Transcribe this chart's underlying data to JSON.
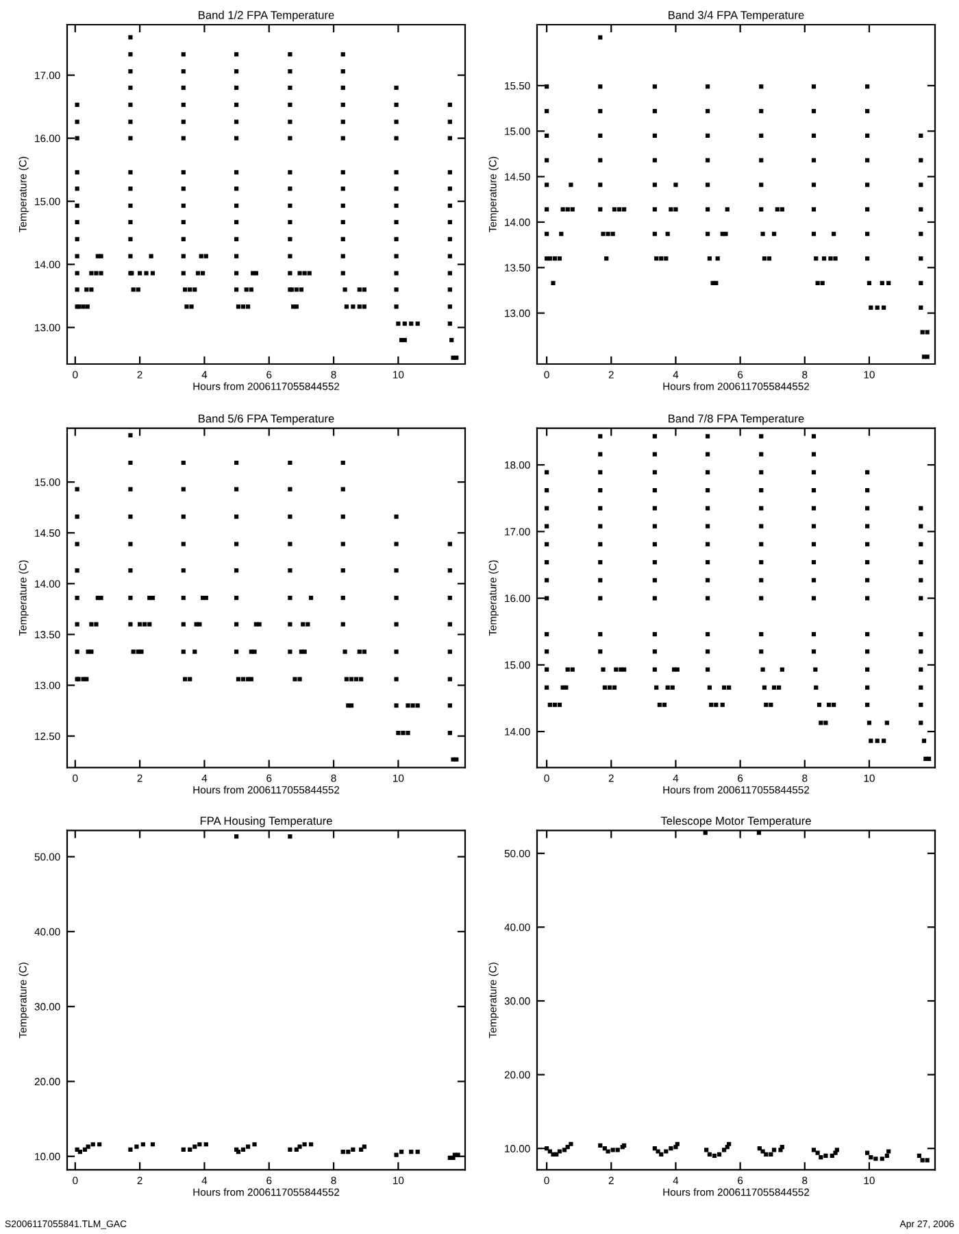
{
  "chart_data": [
    {
      "type": "scatter",
      "title": "Band 1/2 FPA Temperature",
      "xlabel": "Hours from 2006117055844552",
      "ylabel": "Temperature (C)",
      "color": "#000000",
      "marker": "square",
      "xlim": [
        -0.25,
        12.07
      ],
      "xticks": [
        0,
        2,
        4,
        6,
        8,
        10
      ],
      "ylim": [
        12.42,
        17.8
      ],
      "yticks": [
        {
          "value": 13,
          "label": "13.00"
        },
        {
          "value": 14,
          "label": "14.00"
        },
        {
          "value": 15,
          "label": "15.00"
        },
        {
          "value": 16,
          "label": "16.00"
        },
        {
          "value": 17,
          "label": "17.00"
        }
      ],
      "x": [
        0.06,
        0.06,
        0.06,
        0.06,
        0.06,
        0.06,
        0.06,
        0.06,
        0.06,
        0.06,
        0.06,
        0.06,
        0.12,
        0.25,
        0.38,
        0.35,
        0.5,
        0.5,
        0.65,
        0.8,
        0.7,
        0.8,
        1.71,
        1.71,
        1.71,
        1.71,
        1.71,
        1.71,
        1.71,
        1.71,
        1.71,
        1.71,
        1.71,
        1.71,
        1.71,
        1.71,
        1.8,
        1.95,
        1.75,
        2.0,
        2.2,
        2.4,
        2.35,
        3.35,
        3.35,
        3.35,
        3.35,
        3.35,
        3.35,
        3.35,
        3.35,
        3.35,
        3.35,
        3.35,
        3.35,
        3.35,
        3.45,
        3.6,
        3.4,
        3.55,
        3.7,
        3.8,
        3.95,
        3.9,
        4.05,
        4.99,
        4.99,
        4.99,
        4.99,
        4.99,
        4.99,
        4.99,
        4.99,
        4.99,
        4.99,
        4.99,
        4.99,
        4.99,
        4.99,
        5.05,
        5.2,
        5.35,
        5.3,
        5.45,
        5.5,
        5.6,
        6.65,
        6.65,
        6.65,
        6.65,
        6.65,
        6.65,
        6.65,
        6.65,
        6.65,
        6.65,
        6.65,
        6.65,
        6.65,
        6.65,
        6.75,
        6.85,
        6.7,
        6.85,
        7.0,
        6.95,
        7.1,
        7.25,
        8.29,
        8.29,
        8.29,
        8.29,
        8.29,
        8.29,
        8.29,
        8.29,
        8.29,
        8.29,
        8.29,
        8.29,
        8.29,
        8.35,
        8.4,
        8.6,
        8.8,
        8.95,
        8.8,
        8.95,
        9.94,
        9.94,
        9.94,
        9.94,
        9.94,
        9.94,
        9.94,
        9.94,
        9.94,
        9.94,
        9.94,
        9.94,
        9.94,
        10.0,
        10.2,
        10.4,
        10.6,
        10.1,
        10.2,
        11.6,
        11.6,
        11.6,
        11.6,
        11.6,
        11.6,
        11.6,
        11.6,
        11.6,
        11.6,
        11.6,
        11.6,
        11.6,
        11.65,
        11.7,
        11.8
      ],
      "values": [
        16.53,
        16.26,
        16.0,
        15.46,
        15.2,
        14.93,
        14.67,
        14.4,
        14.13,
        13.86,
        13.6,
        13.33,
        13.33,
        13.33,
        13.33,
        13.6,
        13.6,
        13.86,
        13.86,
        13.86,
        14.13,
        14.13,
        17.6,
        17.33,
        17.06,
        16.8,
        16.53,
        16.26,
        16.0,
        15.46,
        15.2,
        14.93,
        14.67,
        14.4,
        14.13,
        13.86,
        13.6,
        13.6,
        13.86,
        13.86,
        13.86,
        13.86,
        14.13,
        17.33,
        17.06,
        16.8,
        16.53,
        16.26,
        16.0,
        15.46,
        15.2,
        14.93,
        14.67,
        14.4,
        14.13,
        13.86,
        13.33,
        13.33,
        13.6,
        13.6,
        13.6,
        13.86,
        13.86,
        14.13,
        14.13,
        17.33,
        17.06,
        16.8,
        16.53,
        16.26,
        16.0,
        15.46,
        15.2,
        14.93,
        14.67,
        14.4,
        14.13,
        13.86,
        13.6,
        13.33,
        13.33,
        13.33,
        13.6,
        13.6,
        13.86,
        13.86,
        17.33,
        17.06,
        16.8,
        16.53,
        16.26,
        16.0,
        15.46,
        15.2,
        14.93,
        14.67,
        14.4,
        14.13,
        13.86,
        13.6,
        13.33,
        13.33,
        13.6,
        13.6,
        13.6,
        13.86,
        13.86,
        13.86,
        17.33,
        17.06,
        16.8,
        16.53,
        16.26,
        16.0,
        15.46,
        15.2,
        14.93,
        14.67,
        14.4,
        14.13,
        13.86,
        13.6,
        13.33,
        13.33,
        13.33,
        13.33,
        13.6,
        13.6,
        16.8,
        16.53,
        16.26,
        16.0,
        15.46,
        15.2,
        14.93,
        14.67,
        14.4,
        14.13,
        13.86,
        13.6,
        13.33,
        13.06,
        13.06,
        13.06,
        13.06,
        12.8,
        12.8,
        16.53,
        16.26,
        16.0,
        15.46,
        15.2,
        14.93,
        14.67,
        14.4,
        14.13,
        13.86,
        13.6,
        13.33,
        13.06,
        12.8,
        12.52,
        12.52
      ]
    },
    {
      "type": "scatter",
      "title": "Band 3/4 FPA Temperature",
      "xlabel": "Hours from 2006117055844552",
      "ylabel": "Temperature (C)",
      "color": "#000000",
      "marker": "square",
      "xlim": [
        -0.3,
        12.04
      ],
      "xticks": [
        0,
        2,
        4,
        6,
        8,
        10
      ],
      "ylim": [
        12.44,
        16.17
      ],
      "yticks": [
        {
          "value": 13,
          "label": "13.00"
        },
        {
          "value": 13.5,
          "label": "13.50"
        },
        {
          "value": 14,
          "label": "14.00"
        },
        {
          "value": 14.5,
          "label": "14.50"
        },
        {
          "value": 15,
          "label": "15.00"
        },
        {
          "value": 15.5,
          "label": "15.50"
        }
      ],
      "x": [
        0,
        0,
        0,
        0,
        0,
        0,
        0,
        0,
        0.1,
        0.25,
        0.4,
        0.2,
        0.45,
        0.5,
        0.65,
        0.8,
        0.75,
        1.66,
        1.66,
        1.66,
        1.66,
        1.66,
        1.66,
        1.66,
        1.75,
        1.9,
        2.05,
        1.85,
        2.1,
        2.25,
        2.4,
        3.35,
        3.35,
        3.35,
        3.35,
        3.35,
        3.35,
        3.35,
        3.4,
        3.55,
        3.7,
        3.75,
        3.85,
        4.0,
        4.0,
        4.99,
        4.99,
        4.99,
        4.99,
        4.99,
        4.99,
        4.99,
        5.05,
        5.15,
        5.25,
        5.3,
        5.45,
        5.55,
        5.6,
        6.65,
        6.65,
        6.65,
        6.65,
        6.65,
        6.65,
        6.7,
        6.75,
        6.9,
        7.05,
        7.15,
        7.3,
        8.28,
        8.28,
        8.28,
        8.28,
        8.28,
        8.28,
        8.28,
        8.35,
        8.6,
        8.8,
        8.95,
        8.4,
        8.55,
        8.9,
        9.94,
        9.94,
        9.94,
        9.94,
        9.94,
        9.94,
        9.94,
        9.94,
        10.0,
        10.4,
        10.6,
        10.05,
        10.25,
        10.45,
        11.6,
        11.6,
        11.6,
        11.6,
        11.6,
        11.6,
        11.6,
        11.6,
        11.65,
        11.8,
        11.7,
        11.8
      ],
      "values": [
        15.49,
        15.22,
        14.95,
        14.68,
        14.41,
        14.14,
        13.87,
        13.6,
        13.6,
        13.6,
        13.6,
        13.33,
        13.87,
        14.14,
        14.14,
        14.14,
        14.41,
        16.03,
        15.49,
        15.22,
        14.95,
        14.68,
        14.41,
        14.14,
        13.87,
        13.87,
        13.87,
        13.6,
        14.14,
        14.14,
        14.14,
        15.49,
        15.22,
        14.95,
        14.68,
        14.41,
        14.14,
        13.87,
        13.6,
        13.6,
        13.6,
        13.87,
        14.14,
        14.14,
        14.41,
        15.49,
        15.22,
        14.95,
        14.68,
        14.41,
        14.14,
        13.87,
        13.6,
        13.33,
        13.33,
        13.6,
        13.87,
        13.87,
        14.14,
        15.49,
        15.22,
        14.95,
        14.68,
        14.41,
        14.14,
        13.87,
        13.6,
        13.6,
        13.87,
        14.14,
        14.14,
        15.49,
        15.22,
        14.95,
        14.68,
        14.41,
        14.14,
        13.87,
        13.6,
        13.6,
        13.6,
        13.6,
        13.33,
        13.33,
        13.87,
        15.49,
        15.22,
        14.95,
        14.68,
        14.41,
        14.14,
        13.87,
        13.6,
        13.33,
        13.33,
        13.33,
        13.06,
        13.06,
        13.06,
        14.95,
        14.68,
        14.41,
        14.14,
        13.87,
        13.6,
        13.33,
        13.06,
        12.79,
        12.79,
        12.52,
        12.52
      ]
    },
    {
      "type": "scatter",
      "title": "Band 5/6 FPA Temperature",
      "xlabel": "Hours from 2006117055844552",
      "ylabel": "Temperature (C)",
      "color": "#000000",
      "marker": "square",
      "xlim": [
        -0.25,
        12.07
      ],
      "xticks": [
        0,
        2,
        4,
        6,
        8,
        10
      ],
      "ylim": [
        12.19,
        15.53
      ],
      "yticks": [
        {
          "value": 12.5,
          "label": "12.50"
        },
        {
          "value": 13,
          "label": "13.00"
        },
        {
          "value": 13.5,
          "label": "13.50"
        },
        {
          "value": 14,
          "label": "14.00"
        },
        {
          "value": 14.5,
          "label": "14.50"
        },
        {
          "value": 15,
          "label": "15.00"
        }
      ],
      "x": [
        0.06,
        0.06,
        0.06,
        0.06,
        0.06,
        0.06,
        0.06,
        0.06,
        0.1,
        0.25,
        0.35,
        0.4,
        0.5,
        0.5,
        0.65,
        0.7,
        0.8,
        1.71,
        1.71,
        1.71,
        1.71,
        1.71,
        1.71,
        1.71,
        1.71,
        1.8,
        1.95,
        2.05,
        2.0,
        2.15,
        2.3,
        2.3,
        2.4,
        3.35,
        3.35,
        3.35,
        3.35,
        3.35,
        3.35,
        3.35,
        3.35,
        3.4,
        3.55,
        3.7,
        3.75,
        3.85,
        3.95,
        4.05,
        4.99,
        4.99,
        4.99,
        4.99,
        4.99,
        4.99,
        4.99,
        4.99,
        5.05,
        5.2,
        5.35,
        5.45,
        5.45,
        5.55,
        5.6,
        5.7,
        6.65,
        6.65,
        6.65,
        6.65,
        6.65,
        6.65,
        6.65,
        6.65,
        6.8,
        6.95,
        7.0,
        7.1,
        7.05,
        7.2,
        7.3,
        8.29,
        8.29,
        8.29,
        8.29,
        8.29,
        8.29,
        8.29,
        8.35,
        8.4,
        8.55,
        8.7,
        8.85,
        8.45,
        8.55,
        8.8,
        8.95,
        9.94,
        9.94,
        9.94,
        9.94,
        9.94,
        9.94,
        9.94,
        9.94,
        10.0,
        10.15,
        10.3,
        10.3,
        10.45,
        10.6,
        11.6,
        11.6,
        11.6,
        11.6,
        11.6,
        11.6,
        11.6,
        11.6,
        11.7,
        11.8
      ],
      "values": [
        14.93,
        14.66,
        14.39,
        14.13,
        13.86,
        13.6,
        13.33,
        13.06,
        13.06,
        13.06,
        13.06,
        13.33,
        13.33,
        13.6,
        13.6,
        13.86,
        13.86,
        15.46,
        15.19,
        14.93,
        14.66,
        14.39,
        14.13,
        13.86,
        13.6,
        13.33,
        13.33,
        13.33,
        13.6,
        13.6,
        13.6,
        13.86,
        13.86,
        15.19,
        14.93,
        14.66,
        14.39,
        14.13,
        13.86,
        13.6,
        13.33,
        13.06,
        13.06,
        13.33,
        13.6,
        13.6,
        13.86,
        13.86,
        15.19,
        14.93,
        14.66,
        14.39,
        14.13,
        13.86,
        13.6,
        13.33,
        13.06,
        13.06,
        13.06,
        13.06,
        13.33,
        13.33,
        13.6,
        13.6,
        15.19,
        14.93,
        14.66,
        14.39,
        14.13,
        13.86,
        13.6,
        13.33,
        13.06,
        13.06,
        13.33,
        13.33,
        13.6,
        13.6,
        13.86,
        15.19,
        14.93,
        14.66,
        14.39,
        14.13,
        13.86,
        13.6,
        13.33,
        13.06,
        13.06,
        13.06,
        13.06,
        12.8,
        12.8,
        13.33,
        13.33,
        14.66,
        14.39,
        14.13,
        13.86,
        13.6,
        13.33,
        13.06,
        12.8,
        12.53,
        12.53,
        12.53,
        12.8,
        12.8,
        12.8,
        14.39,
        14.13,
        13.86,
        13.6,
        13.33,
        13.06,
        12.8,
        12.53,
        12.27,
        12.27
      ]
    },
    {
      "type": "scatter",
      "title": "Band 7/8 FPA Temperature",
      "xlabel": "Hours from 2006117055844552",
      "ylabel": "Temperature (C)",
      "color": "#000000",
      "marker": "square",
      "xlim": [
        -0.3,
        12.04
      ],
      "xticks": [
        0,
        2,
        4,
        6,
        8,
        10
      ],
      "ylim": [
        13.46,
        18.55
      ],
      "yticks": [
        {
          "value": 14,
          "label": "14.00"
        },
        {
          "value": 15,
          "label": "15.00"
        },
        {
          "value": 16,
          "label": "16.00"
        },
        {
          "value": 17,
          "label": "17.00"
        },
        {
          "value": 18,
          "label": "18.00"
        }
      ],
      "x": [
        0,
        0,
        0,
        0,
        0,
        0,
        0,
        0,
        0,
        0,
        0,
        0,
        0.1,
        0.25,
        0.4,
        0.5,
        0.6,
        0.65,
        0.8,
        1.66,
        1.66,
        1.66,
        1.66,
        1.66,
        1.66,
        1.66,
        1.66,
        1.66,
        1.66,
        1.66,
        1.66,
        1.75,
        1.8,
        1.95,
        2.1,
        2.15,
        2.3,
        2.4,
        3.35,
        3.35,
        3.35,
        3.35,
        3.35,
        3.35,
        3.35,
        3.35,
        3.35,
        3.35,
        3.35,
        3.35,
        3.35,
        3.4,
        3.5,
        3.65,
        3.75,
        3.9,
        3.95,
        4.05,
        4.99,
        4.99,
        4.99,
        4.99,
        4.99,
        4.99,
        4.99,
        4.99,
        4.99,
        4.99,
        4.99,
        4.99,
        4.99,
        5.05,
        5.1,
        5.25,
        5.45,
        5.5,
        5.65,
        6.65,
        6.65,
        6.65,
        6.65,
        6.65,
        6.65,
        6.65,
        6.65,
        6.65,
        6.65,
        6.65,
        6.65,
        6.7,
        6.75,
        6.8,
        6.95,
        7.05,
        7.2,
        7.3,
        8.28,
        8.28,
        8.28,
        8.28,
        8.28,
        8.28,
        8.28,
        8.28,
        8.28,
        8.28,
        8.28,
        8.28,
        8.33,
        8.35,
        8.45,
        8.75,
        8.9,
        8.5,
        8.65,
        9.94,
        9.94,
        9.94,
        9.94,
        9.94,
        9.94,
        9.94,
        9.94,
        9.94,
        9.94,
        9.94,
        9.94,
        9.94,
        10.0,
        10.55,
        10.05,
        10.25,
        10.45,
        11.6,
        11.6,
        11.6,
        11.6,
        11.6,
        11.6,
        11.6,
        11.6,
        11.6,
        11.6,
        11.6,
        11.6,
        11.7,
        11.75,
        11.85
      ],
      "values": [
        17.89,
        17.62,
        17.35,
        17.08,
        16.81,
        16.54,
        16.27,
        16.0,
        15.46,
        15.2,
        14.93,
        14.66,
        14.4,
        14.4,
        14.4,
        14.66,
        14.66,
        14.93,
        14.93,
        18.43,
        18.16,
        17.89,
        17.62,
        17.35,
        17.08,
        16.81,
        16.54,
        16.27,
        16.0,
        15.46,
        15.2,
        14.93,
        14.66,
        14.66,
        14.66,
        14.93,
        14.93,
        14.93,
        18.43,
        18.16,
        17.89,
        17.62,
        17.35,
        17.08,
        16.81,
        16.54,
        16.27,
        16.0,
        15.46,
        15.2,
        14.93,
        14.66,
        14.4,
        14.4,
        14.66,
        14.66,
        14.93,
        14.93,
        18.43,
        18.16,
        17.89,
        17.62,
        17.35,
        17.08,
        16.81,
        16.54,
        16.27,
        16.0,
        15.46,
        15.2,
        14.93,
        14.66,
        14.4,
        14.4,
        14.4,
        14.66,
        14.66,
        18.43,
        18.16,
        17.89,
        17.62,
        17.35,
        17.08,
        16.81,
        16.54,
        16.27,
        16.0,
        15.46,
        15.2,
        14.93,
        14.66,
        14.4,
        14.4,
        14.66,
        14.66,
        14.93,
        18.43,
        18.16,
        17.89,
        17.62,
        17.35,
        17.08,
        16.81,
        16.54,
        16.27,
        16.0,
        15.46,
        15.2,
        14.93,
        14.66,
        14.4,
        14.4,
        14.4,
        14.13,
        14.13,
        17.89,
        17.62,
        17.35,
        17.08,
        16.81,
        16.54,
        16.27,
        16.0,
        15.46,
        15.2,
        14.93,
        14.66,
        14.4,
        14.13,
        14.13,
        13.86,
        13.86,
        13.86,
        17.35,
        17.08,
        16.81,
        16.54,
        16.27,
        16.0,
        15.46,
        15.2,
        14.93,
        14.66,
        14.4,
        14.13,
        13.86,
        13.59,
        13.59
      ]
    },
    {
      "type": "scatter",
      "title": "FPA Housing Temperature",
      "xlabel": "Hours from 2006117055844552",
      "ylabel": "Temperature (C)",
      "color": "#000000",
      "marker": "square",
      "annotations": [
        "S2006117055841.TLM_GAC"
      ],
      "xlim": [
        -0.25,
        12.07
      ],
      "xticks": [
        0,
        2,
        4,
        6,
        8,
        10
      ],
      "ylim": [
        8.2,
        53.5
      ],
      "yticks": [
        {
          "value": 10,
          "label": "10.00"
        },
        {
          "value": 20,
          "label": "20.00"
        },
        {
          "value": 30,
          "label": "30.00"
        },
        {
          "value": 40,
          "label": "40.00"
        },
        {
          "value": 50,
          "label": "50.00"
        }
      ],
      "x": [
        0.06,
        0.15,
        0.3,
        0.4,
        0.55,
        0.75,
        1.71,
        1.9,
        2.1,
        2.4,
        3.35,
        3.55,
        3.7,
        3.85,
        4.05,
        4.99,
        5.05,
        5.2,
        5.35,
        5.55,
        4.99,
        6.65,
        6.85,
        6.95,
        7.1,
        7.3,
        6.65,
        8.29,
        8.45,
        8.6,
        8.85,
        8.95,
        9.94,
        10.1,
        10.4,
        10.6,
        11.6,
        11.7,
        11.75,
        11.85
      ],
      "values": [
        10.9,
        10.6,
        10.9,
        11.3,
        11.6,
        11.6,
        10.9,
        11.3,
        11.6,
        11.6,
        10.9,
        10.9,
        11.3,
        11.6,
        11.6,
        10.9,
        10.6,
        10.9,
        11.3,
        11.6,
        52.7,
        10.9,
        10.9,
        11.3,
        11.6,
        11.6,
        52.7,
        10.6,
        10.6,
        10.9,
        10.9,
        11.3,
        10.2,
        10.6,
        10.6,
        10.6,
        9.8,
        9.8,
        10.2,
        10.2
      ]
    },
    {
      "type": "scatter",
      "title": "Telescope Motor Temperature",
      "xlabel": "Hours from 2006117055844552",
      "ylabel": "Temperature (C)",
      "color": "#000000",
      "marker": "square",
      "annotations": [
        "Apr 27, 2006"
      ],
      "xlim": [
        -0.3,
        12.04
      ],
      "xticks": [
        0,
        2,
        4,
        6,
        8,
        10
      ],
      "ylim": [
        7.1,
        53.1
      ],
      "yticks": [
        {
          "value": 10,
          "label": "10.00"
        },
        {
          "value": 20,
          "label": "20.00"
        },
        {
          "value": 30,
          "label": "30.00"
        },
        {
          "value": 40,
          "label": "40.00"
        },
        {
          "value": 50,
          "label": "50.00"
        }
      ],
      "x": [
        0,
        0.1,
        0.2,
        0.3,
        0.4,
        0.55,
        0.65,
        0.75,
        1.66,
        1.8,
        1.9,
        2.05,
        2.2,
        2.35,
        2.4,
        3.35,
        3.45,
        3.55,
        3.7,
        3.85,
        4.0,
        4.05,
        4.95,
        5.05,
        5.2,
        5.35,
        5.5,
        5.6,
        5.65,
        4.92,
        6.6,
        6.7,
        6.8,
        6.95,
        7.05,
        7.25,
        7.3,
        6.58,
        8.28,
        8.4,
        8.5,
        8.65,
        8.85,
        8.95,
        9.0,
        9.94,
        10.05,
        10.2,
        10.4,
        10.55,
        10.6,
        11.55,
        11.65,
        11.8
      ],
      "values": [
        10.0,
        9.6,
        9.2,
        9.2,
        9.6,
        9.8,
        10.2,
        10.6,
        10.4,
        10.0,
        9.6,
        9.8,
        9.8,
        10.2,
        10.4,
        10.0,
        9.6,
        9.2,
        9.6,
        10.0,
        10.2,
        10.6,
        9.8,
        9.2,
        9.0,
        9.2,
        9.8,
        10.2,
        10.6,
        52.8,
        10.0,
        9.6,
        9.2,
        9.2,
        9.8,
        9.8,
        10.2,
        52.8,
        9.8,
        9.4,
        8.8,
        9.0,
        9.0,
        9.4,
        9.8,
        9.4,
        8.8,
        8.6,
        8.6,
        9.0,
        9.6,
        9.0,
        8.4,
        8.4
      ]
    }
  ]
}
